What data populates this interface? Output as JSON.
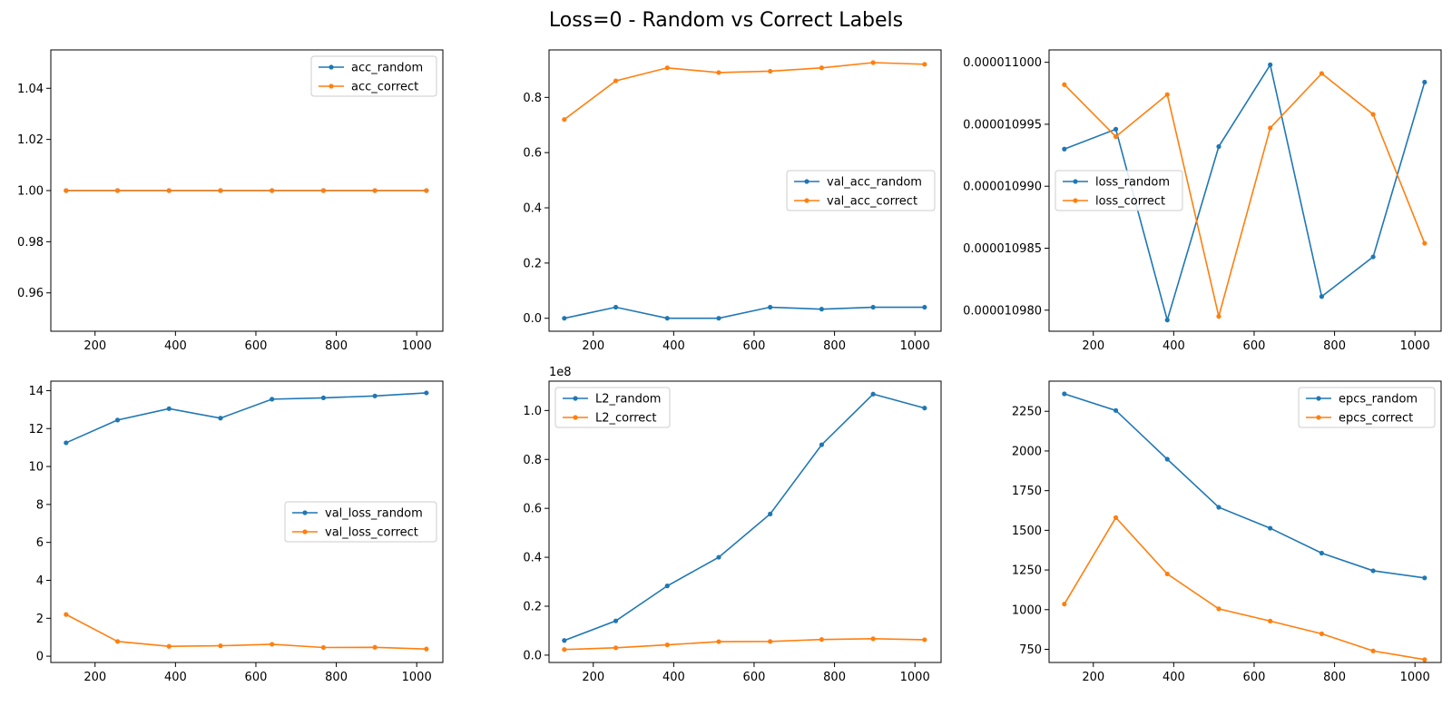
{
  "title": "Loss=0 - Random vs Correct Labels",
  "colors": {
    "random": "#1f77b4",
    "correct": "#ff7f0e"
  },
  "chart_data": [
    {
      "type": "line",
      "x": [
        128,
        256,
        384,
        512,
        640,
        768,
        896,
        1024
      ],
      "xlim": [
        90,
        1065
      ],
      "ylim": [
        0.945,
        1.055
      ],
      "xticks": [
        200,
        400,
        600,
        800,
        1000
      ],
      "yticks": [
        0.96,
        0.98,
        1.0,
        1.02,
        1.04
      ],
      "ytick_labels": [
        "0.96",
        "0.98",
        "1.00",
        "1.02",
        "1.04"
      ],
      "offset_label": "",
      "legend": "top-right",
      "series": [
        {
          "name": "acc_random",
          "values": [
            1,
            1,
            1,
            1,
            1,
            1,
            1,
            1
          ]
        },
        {
          "name": "acc_correct",
          "values": [
            1,
            1,
            1,
            1,
            1,
            1,
            1,
            1
          ]
        }
      ]
    },
    {
      "type": "line",
      "x": [
        128,
        256,
        384,
        512,
        640,
        768,
        896,
        1024
      ],
      "xlim": [
        90,
        1065
      ],
      "ylim": [
        -0.047,
        0.972
      ],
      "xticks": [
        200,
        400,
        600,
        800,
        1000
      ],
      "yticks": [
        0.0,
        0.2,
        0.4,
        0.6,
        0.8
      ],
      "ytick_labels": [
        "0.0",
        "0.2",
        "0.4",
        "0.6",
        "0.8"
      ],
      "offset_label": "",
      "legend": "center-right",
      "series": [
        {
          "name": "val_acc_random",
          "values": [
            0.0,
            0.04,
            0.0,
            0.0,
            0.04,
            0.033,
            0.04,
            0.04
          ]
        },
        {
          "name": "val_acc_correct",
          "values": [
            0.72,
            0.86,
            0.907,
            0.89,
            0.895,
            0.907,
            0.926,
            0.92
          ]
        }
      ]
    },
    {
      "type": "line",
      "x": [
        128,
        256,
        384,
        512,
        640,
        768,
        896,
        1024
      ],
      "xlim": [
        90,
        1065
      ],
      "ylim": [
        1.09783e-05,
        1.1001e-05
      ],
      "xticks": [
        200,
        400,
        600,
        800,
        1000
      ],
      "yticks": [
        1.098e-05,
        1.0985e-05,
        1.099e-05,
        1.0995e-05,
        1.1e-05
      ],
      "ytick_labels": [
        "0.000010980",
        "0.000010985",
        "0.000010990",
        "0.000010995",
        "0.000011000"
      ],
      "offset_label": "",
      "legend": "center-left",
      "series": [
        {
          "name": "loss_random",
          "values": [
            1.0993e-05,
            1.09946e-05,
            1.09792e-05,
            1.09932e-05,
            1.09998e-05,
            1.09811e-05,
            1.09843e-05,
            1.09984e-05
          ]
        },
        {
          "name": "loss_correct",
          "values": [
            1.09982e-05,
            1.0994e-05,
            1.09974e-05,
            1.09795e-05,
            1.09947e-05,
            1.09991e-05,
            1.09958e-05,
            1.09854e-05
          ]
        }
      ]
    },
    {
      "type": "line",
      "x": [
        128,
        256,
        384,
        512,
        640,
        768,
        896,
        1024
      ],
      "xlim": [
        90,
        1065
      ],
      "ylim": [
        -0.33,
        14.5
      ],
      "xticks": [
        200,
        400,
        600,
        800,
        1000
      ],
      "yticks": [
        0,
        2,
        4,
        6,
        8,
        10,
        12,
        14
      ],
      "ytick_labels": [
        "0",
        "2",
        "4",
        "6",
        "8",
        "10",
        "12",
        "14"
      ],
      "offset_label": "",
      "legend": "center-right",
      "series": [
        {
          "name": "val_loss_random",
          "values": [
            11.25,
            12.45,
            13.05,
            12.55,
            13.55,
            13.62,
            13.72,
            13.88
          ]
        },
        {
          "name": "val_loss_correct",
          "values": [
            2.2,
            0.78,
            0.52,
            0.55,
            0.63,
            0.46,
            0.47,
            0.38
          ]
        }
      ]
    },
    {
      "type": "line",
      "x": [
        128,
        256,
        384,
        512,
        640,
        768,
        896,
        1024
      ],
      "xlim": [
        90,
        1065
      ],
      "ylim": [
        -3000000,
        112000000
      ],
      "xticks": [
        200,
        400,
        600,
        800,
        1000
      ],
      "yticks": [
        0,
        20000000,
        40000000,
        60000000,
        80000000,
        100000000
      ],
      "ytick_labels": [
        "0.0",
        "0.2",
        "0.4",
        "0.6",
        "0.8",
        "1.0"
      ],
      "offset_label": "1e8",
      "legend": "top-left",
      "series": [
        {
          "name": "L2_random",
          "values": [
            6000000,
            14000000,
            28300000,
            40000000,
            57700000,
            86000000,
            106700000,
            101000000
          ]
        },
        {
          "name": "L2_correct",
          "values": [
            2300000,
            3000000,
            4200000,
            5500000,
            5600000,
            6400000,
            6700000,
            6300000
          ]
        }
      ]
    },
    {
      "type": "line",
      "x": [
        128,
        256,
        384,
        512,
        640,
        768,
        896,
        1024
      ],
      "xlim": [
        90,
        1065
      ],
      "ylim": [
        667,
        2440
      ],
      "xticks": [
        200,
        400,
        600,
        800,
        1000
      ],
      "yticks": [
        750,
        1000,
        1250,
        1500,
        1750,
        2000,
        2250
      ],
      "ytick_labels": [
        "750",
        "1000",
        "1250",
        "1500",
        "1750",
        "2000",
        "2250"
      ],
      "offset_label": "",
      "legend": "top-right",
      "series": [
        {
          "name": "epcs_random",
          "values": [
            2360,
            2255,
            1948,
            1645,
            1513,
            1356,
            1245,
            1200
          ]
        },
        {
          "name": "epcs_correct",
          "values": [
            1035,
            1580,
            1225,
            1005,
            928,
            848,
            740,
            685
          ]
        }
      ]
    }
  ]
}
